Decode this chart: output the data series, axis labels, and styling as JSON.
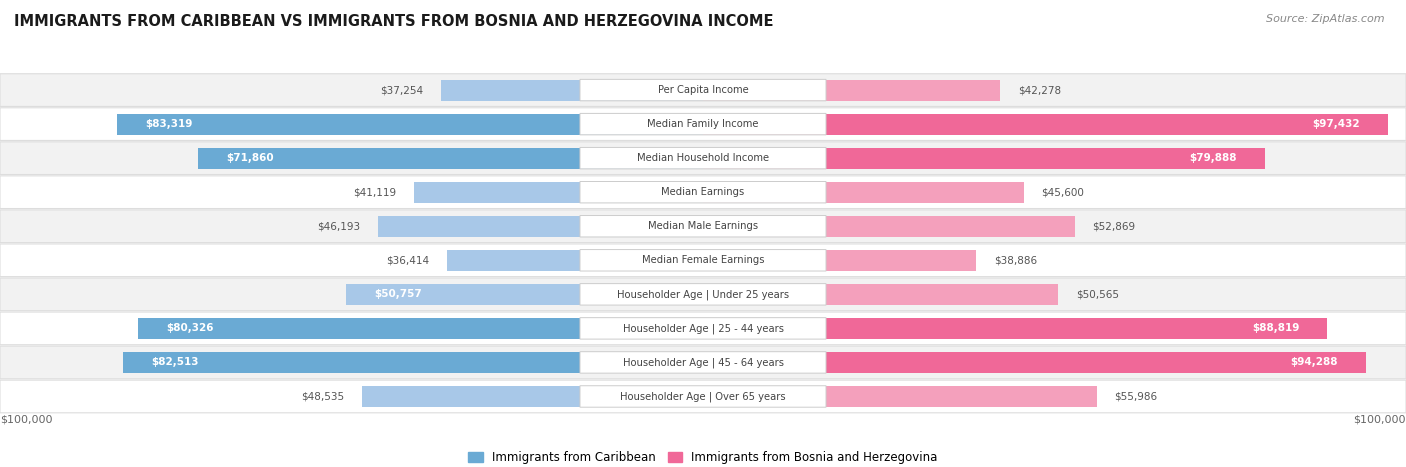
{
  "title": "IMMIGRANTS FROM CARIBBEAN VS IMMIGRANTS FROM BOSNIA AND HERZEGOVINA INCOME",
  "source": "Source: ZipAtlas.com",
  "categories": [
    "Per Capita Income",
    "Median Family Income",
    "Median Household Income",
    "Median Earnings",
    "Median Male Earnings",
    "Median Female Earnings",
    "Householder Age | Under 25 years",
    "Householder Age | 25 - 44 years",
    "Householder Age | 45 - 64 years",
    "Householder Age | Over 65 years"
  ],
  "left_values": [
    37254,
    83319,
    71860,
    41119,
    46193,
    36414,
    50757,
    80326,
    82513,
    48535
  ],
  "right_values": [
    42278,
    97432,
    79888,
    45600,
    52869,
    38886,
    50565,
    88819,
    94288,
    55986
  ],
  "left_labels": [
    "$37,254",
    "$83,319",
    "$71,860",
    "$41,119",
    "$46,193",
    "$36,414",
    "$50,757",
    "$80,326",
    "$82,513",
    "$48,535"
  ],
  "right_labels": [
    "$42,278",
    "$97,432",
    "$79,888",
    "$45,600",
    "$52,869",
    "$38,886",
    "$50,565",
    "$88,819",
    "$94,288",
    "$55,986"
  ],
  "left_color": "#a8c8e8",
  "right_color": "#f4a0bc",
  "left_color_strong": "#6aaad4",
  "right_color_strong": "#f06898",
  "bg_color": "#ffffff",
  "row_bg_light": "#f2f2f2",
  "row_bg_white": "#ffffff",
  "max_value": 100000,
  "legend_left": "Immigrants from Caribbean",
  "legend_right": "Immigrants from Bosnia and Herzegovina",
  "center_label_color": "#ffffff",
  "center_label_border": "#cccccc",
  "label_inside_color": "#ffffff",
  "label_outside_color": "#555555"
}
